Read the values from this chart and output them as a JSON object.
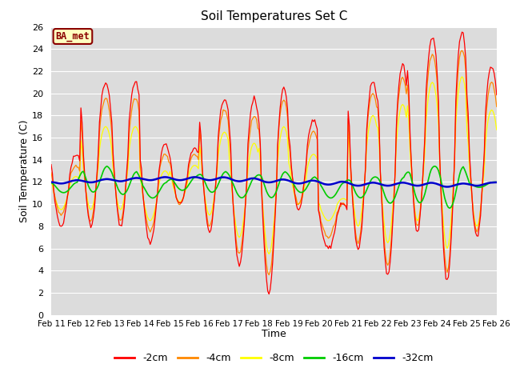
{
  "title": "Soil Temperatures Set C",
  "xlabel": "Time",
  "ylabel": "Soil Temperature (C)",
  "ylim": [
    0,
    26
  ],
  "yticks": [
    0,
    2,
    4,
    6,
    8,
    10,
    12,
    14,
    16,
    18,
    20,
    22,
    24,
    26
  ],
  "x_labels": [
    "Feb 11",
    "Feb 12",
    "Feb 13",
    "Feb 14",
    "Feb 15",
    "Feb 16",
    "Feb 17",
    "Feb 18",
    "Feb 19",
    "Feb 20",
    "Feb 21",
    "Feb 22",
    "Feb 23",
    "Feb 24",
    "Feb 25",
    "Feb 26"
  ],
  "annotation_text": "BA_met",
  "annotation_bg": "#ffffc0",
  "annotation_border": "#8b0000",
  "annotation_text_color": "#8b0000",
  "colors": {
    "-2cm": "#ff0000",
    "-4cm": "#ff8800",
    "-8cm": "#ffff00",
    "-16cm": "#00cc00",
    "-32cm": "#0000cc"
  },
  "bg_color": "#dcdcdc",
  "grid_color": "#ffffff",
  "figsize": [
    6.4,
    4.8
  ],
  "dpi": 100
}
